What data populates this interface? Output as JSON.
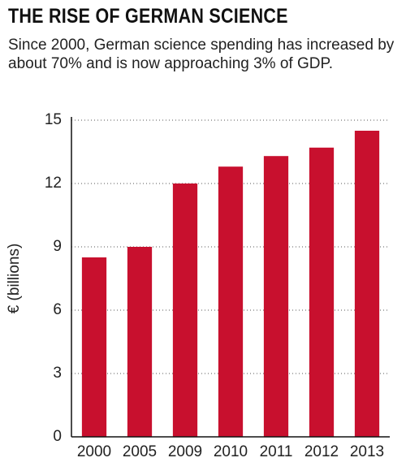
{
  "chart_data": {
    "type": "bar",
    "title": "THE RISE OF GERMAN SCIENCE",
    "subtitle": "Since 2000, German science spending has increased by about 70% and is now approaching 3% of GDP.",
    "y_label": "€ (billions)",
    "categories": [
      "2000",
      "2005",
      "2009",
      "2010",
      "2011",
      "2012",
      "2013"
    ],
    "values": [
      8.5,
      9.0,
      12.0,
      12.8,
      13.3,
      13.7,
      14.5
    ],
    "color": "#c8102e",
    "ylim": [
      0,
      15
    ],
    "yticks": [
      0,
      3,
      6,
      9,
      12,
      15
    ],
    "grid": true
  }
}
